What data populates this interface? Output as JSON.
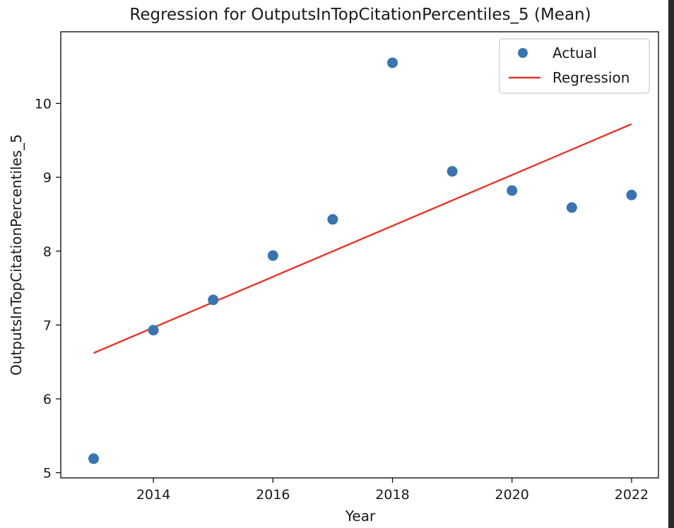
{
  "chart_data": {
    "type": "scatter",
    "title": "Regression for OutputsInTopCitationPercentiles_5 (Mean)",
    "xlabel": "Year",
    "ylabel": "OutputsInTopCitationPercentiles_5",
    "xlim": [
      2012.45,
      2022.45
    ],
    "ylim": [
      4.93,
      10.97
    ],
    "xticks": [
      2014,
      2016,
      2018,
      2020,
      2022
    ],
    "yticks": [
      5,
      6,
      7,
      8,
      9,
      10
    ],
    "grid": false,
    "legend": {
      "placement": "top-right",
      "entries": [
        "Actual",
        "Regression"
      ]
    },
    "series": [
      {
        "name": "Actual",
        "kind": "scatter",
        "color": "#3a75b0",
        "x": [
          2013,
          2014,
          2015,
          2016,
          2017,
          2018,
          2019,
          2020,
          2021,
          2022
        ],
        "y": [
          5.19,
          6.93,
          7.34,
          7.94,
          8.43,
          10.55,
          9.08,
          8.82,
          8.59,
          8.76
        ]
      },
      {
        "name": "Regression",
        "kind": "line",
        "color": "#e8352a",
        "x": [
          2013,
          2022
        ],
        "y": [
          6.62,
          9.72
        ]
      }
    ]
  }
}
